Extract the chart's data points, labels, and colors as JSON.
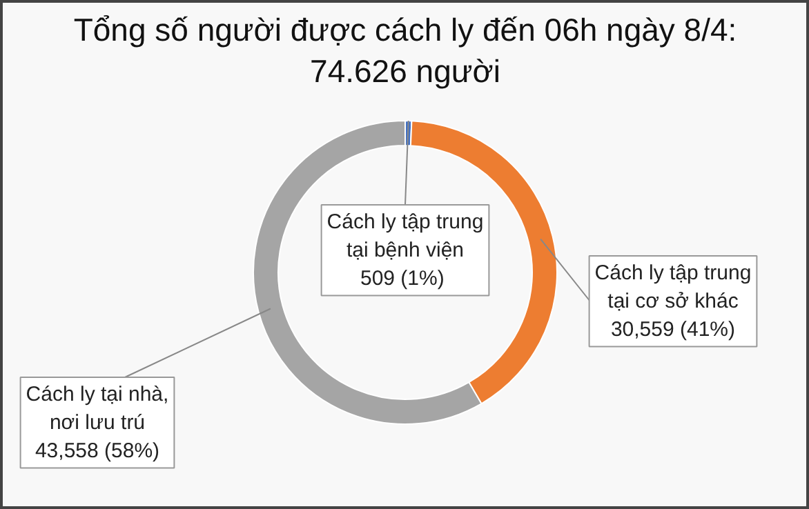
{
  "chart_data": {
    "type": "donut",
    "title": "Tổng số người được cách ly đến 06h ngày 8/4: 74.626 người",
    "categories": [
      "Cách ly tập trung tại bệnh viện",
      "Cách ly tập trung tại cơ sở khác",
      "Cách ly tại nhà, nơi lưu trú"
    ],
    "values": [
      509,
      30559,
      43558
    ],
    "colors": [
      "#4472c4",
      "#ed7d31",
      "#a5a5a5"
    ],
    "value_labels": [
      "509  (1%)",
      "30,559 (41%)",
      "43,558 (58%)"
    ],
    "legend": false
  }
}
